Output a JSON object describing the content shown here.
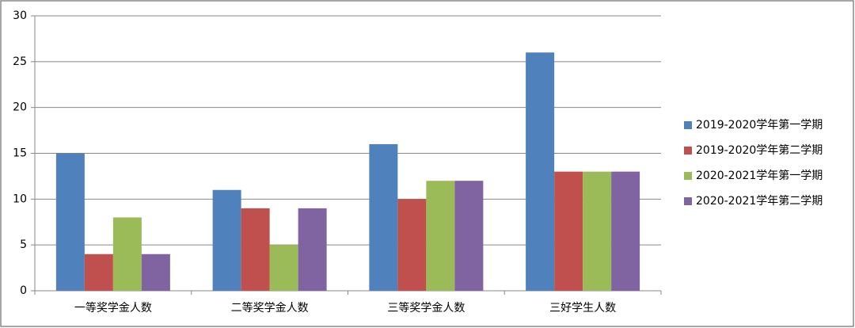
{
  "chart_data": {
    "type": "bar",
    "categories": [
      "一等奖学金人数",
      "二等奖学金人数",
      "三等奖学金人数",
      "三好学生人数"
    ],
    "series": [
      {
        "name": "2019-2020学年第一学期",
        "color": "#4f81bd",
        "values": [
          15,
          11,
          16,
          26
        ]
      },
      {
        "name": "2019-2020学年第二学期",
        "color": "#c0504d",
        "values": [
          4,
          9,
          10,
          13
        ]
      },
      {
        "name": "2020-2021学年第一学期",
        "color": "#9bbb59",
        "values": [
          8,
          5,
          12,
          13
        ]
      },
      {
        "name": "2020-2021学年第二学期",
        "color": "#8064a2",
        "values": [
          4,
          9,
          12,
          13
        ]
      }
    ],
    "ylim": [
      0,
      30
    ],
    "yticks": [
      0,
      5,
      10,
      15,
      20,
      25,
      30
    ],
    "grid": true,
    "legend": "right"
  }
}
